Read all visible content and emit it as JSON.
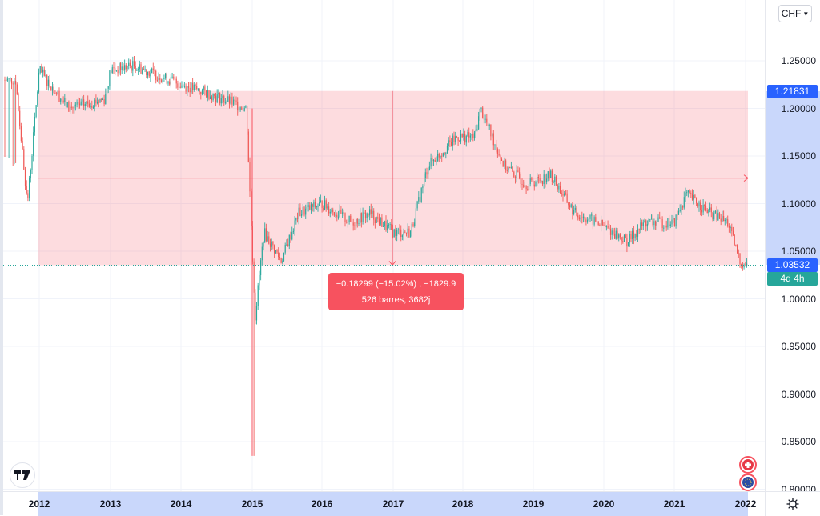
{
  "currency_selector": {
    "label": "CHF",
    "icon": "chevron-down-icon"
  },
  "price_axis": {
    "ticks": [
      {
        "label": "1.25000",
        "value": 1.25
      },
      {
        "label": "1.20000",
        "value": 1.2
      },
      {
        "label": "1.15000",
        "value": 1.15
      },
      {
        "label": "1.10000",
        "value": 1.1
      },
      {
        "label": "1.05000",
        "value": 1.05
      },
      {
        "label": "1.00000",
        "value": 1.0
      },
      {
        "label": "0.95000",
        "value": 0.95
      },
      {
        "label": "0.90000",
        "value": 0.9
      },
      {
        "label": "0.85000",
        "value": 0.85
      },
      {
        "label": "0.80000",
        "value": 0.8
      }
    ],
    "range_top_label": "1.21831",
    "last_price_label": "1.03532",
    "countdown_label": "4d 4h",
    "range_top_color": "#2962ff",
    "last_price_color": "#2962ff",
    "countdown_color": "#26a69a",
    "highlight_color": "#c9d7fb"
  },
  "time_axis": {
    "ticks": [
      "2012",
      "2013",
      "2014",
      "2015",
      "2016",
      "2017",
      "2018",
      "2019",
      "2020",
      "2021",
      "2022"
    ],
    "settings_icon": "gear-icon"
  },
  "measure_tool": {
    "line1": "−0.18299 (−15.02%) , −1829.9",
    "line2": "526 barres, 3682j",
    "from_price": 1.21831,
    "to_price": 1.03532,
    "fill_color": "rgba(247,82,95,0.2)",
    "line_color": "#f7525f"
  },
  "logo": {
    "icon": "tradingview-logo-icon"
  },
  "flags": [
    {
      "icon": "swiss-flag-icon"
    },
    {
      "icon": "eu-flag-icon"
    }
  ],
  "colors": {
    "up": "#26a69a",
    "down": "#ef5350"
  },
  "chart_data": {
    "type": "candlestick",
    "title": "EUR/CHF weekly",
    "xlabel": "",
    "ylabel": "CHF",
    "ylim": [
      0.78,
      1.3
    ],
    "x_range": [
      "2011-09",
      "2022-01"
    ],
    "categories": [
      "2011-09",
      "2011-11",
      "2012-01",
      "2012-06",
      "2012-12",
      "2013-01",
      "2013-05",
      "2013-09",
      "2014-01",
      "2014-06",
      "2014-12",
      "2015-01-15",
      "2015-03",
      "2015-06",
      "2015-09",
      "2016-01",
      "2016-06",
      "2016-09",
      "2017-01",
      "2017-04",
      "2017-07",
      "2017-12",
      "2018-03",
      "2018-04",
      "2018-08",
      "2018-12",
      "2019-04",
      "2019-08",
      "2019-12",
      "2020-05",
      "2020-08",
      "2021-01",
      "2021-03",
      "2021-07",
      "2021-10",
      "2021-12",
      "2022-01"
    ],
    "values": [
      1.23,
      1.1,
      1.24,
      1.2,
      1.21,
      1.24,
      1.245,
      1.235,
      1.225,
      1.215,
      1.2,
      0.98,
      1.07,
      1.04,
      1.09,
      1.1,
      1.08,
      1.09,
      1.07,
      1.07,
      1.14,
      1.17,
      1.17,
      1.2,
      1.14,
      1.12,
      1.13,
      1.09,
      1.08,
      1.06,
      1.08,
      1.08,
      1.11,
      1.09,
      1.08,
      1.04,
      1.035
    ],
    "min_low": 0.835,
    "annotations": {
      "range_measure": {
        "from": 1.21831,
        "to": 1.03532,
        "change": -0.18299,
        "change_pct": -15.02,
        "pips": -1829.9,
        "bars": 526,
        "days": 3682
      },
      "last_price": 1.03532
    },
    "grid": true
  }
}
